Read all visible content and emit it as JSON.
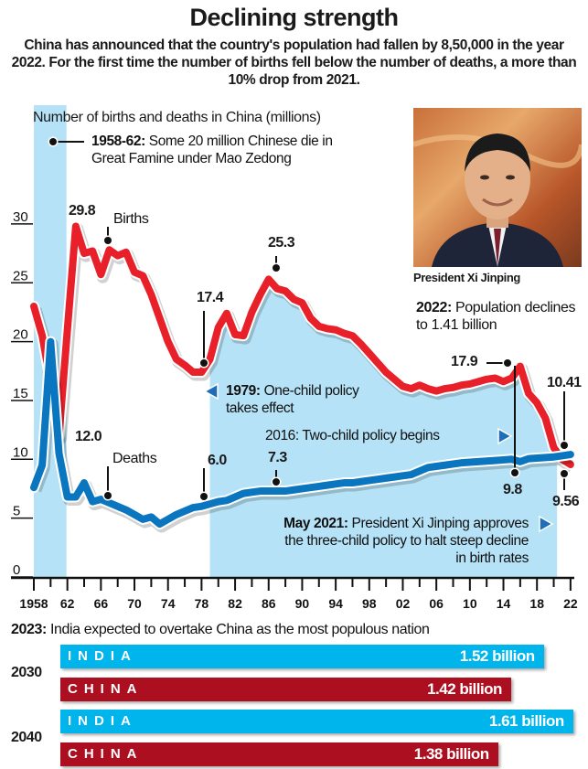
{
  "header": {
    "title": "Declining strength",
    "subtitle": "China has announced that the country's population had fallen by 8,50,000 in the year 2022. For the first time the number of births fell below the number of deaths, a more than 10% drop from 2021."
  },
  "photo": {
    "caption": "President Xi Jinping"
  },
  "colors": {
    "births": "#e8202a",
    "deaths": "#0a76c0",
    "shade": "#b5e2f6",
    "india": "#00b5ec",
    "china": "#ac1020"
  },
  "chart_data": [
    {
      "type": "line",
      "title": "Number of births and deaths in China (millions)",
      "xlabel": "",
      "ylabel": "millions",
      "xlim": [
        1958,
        2022
      ],
      "ylim": [
        0,
        30
      ],
      "yticks": [
        "0",
        "5",
        "10",
        "15",
        "20",
        "25",
        "30"
      ],
      "xticks": [
        "1958",
        "62",
        "66",
        "70",
        "74",
        "78",
        "82",
        "86",
        "90",
        "94",
        "98",
        "02",
        "06",
        "10",
        "14",
        "18",
        "22"
      ],
      "shaded_ranges": [
        [
          1958,
          1962
        ],
        [
          1979,
          2020.4
        ]
      ],
      "series": [
        {
          "name": "Births",
          "years": [
            1958,
            1959,
            1960,
            1961,
            1962,
            1963,
            1964,
            1965,
            1966,
            1967,
            1968,
            1969,
            1970,
            1971,
            1972,
            1973,
            1974,
            1975,
            1976,
            1977,
            1978,
            1979,
            1980,
            1981,
            1982,
            1983,
            1984,
            1985,
            1986,
            1987,
            1988,
            1989,
            1990,
            1991,
            1992,
            1993,
            1994,
            1995,
            1996,
            1997,
            1998,
            1999,
            2000,
            2001,
            2002,
            2003,
            2004,
            2005,
            2006,
            2007,
            2008,
            2009,
            2010,
            2011,
            2012,
            2013,
            2014,
            2015,
            2016,
            2017,
            2018,
            2019,
            2020,
            2021,
            2022
          ],
          "values": [
            23.0,
            20.5,
            16.5,
            12.0,
            21.0,
            29.8,
            27.5,
            27.7,
            25.7,
            27.8,
            27.3,
            27.6,
            25.9,
            25.6,
            24.0,
            22.0,
            20.0,
            18.5,
            18.0,
            17.4,
            17.4,
            18.5,
            21.2,
            22.4,
            20.6,
            20.5,
            22.5,
            24.0,
            25.3,
            24.5,
            24.3,
            23.6,
            23.3,
            22.0,
            21.3,
            21.1,
            21.0,
            20.7,
            20.5,
            19.8,
            19.0,
            18.2,
            17.4,
            16.8,
            16.2,
            16.0,
            16.3,
            16.0,
            15.8,
            16.0,
            16.1,
            16.3,
            16.4,
            16.6,
            16.8,
            16.9,
            16.6,
            16.9,
            17.9,
            15.6,
            14.8,
            13.5,
            11.0,
            10.0,
            9.56
          ]
        },
        {
          "name": "Deaths",
          "years": [
            1958,
            1959,
            1960,
            1961,
            1962,
            1963,
            1964,
            1965,
            1966,
            1967,
            1968,
            1969,
            1970,
            1971,
            1972,
            1973,
            1974,
            1975,
            1976,
            1977,
            1978,
            1979,
            1980,
            1981,
            1982,
            1983,
            1984,
            1985,
            1986,
            1987,
            1988,
            1989,
            1990,
            1991,
            1992,
            1993,
            1994,
            1995,
            1996,
            1997,
            1998,
            1999,
            2000,
            2001,
            2002,
            2003,
            2004,
            2005,
            2006,
            2007,
            2008,
            2009,
            2010,
            2011,
            2012,
            2013,
            2014,
            2015,
            2016,
            2017,
            2018,
            2019,
            2020,
            2021,
            2022
          ],
          "values": [
            7.6,
            9.5,
            20.0,
            10.5,
            6.8,
            6.8,
            8.0,
            6.4,
            6.6,
            6.3,
            6.0,
            5.7,
            5.3,
            4.9,
            5.1,
            4.5,
            4.9,
            5.3,
            5.6,
            5.9,
            6.0,
            6.2,
            6.4,
            6.5,
            6.8,
            7.1,
            7.2,
            7.3,
            7.3,
            7.3,
            7.3,
            7.4,
            7.5,
            7.6,
            7.7,
            7.8,
            7.9,
            8.0,
            8.0,
            8.1,
            8.2,
            8.3,
            8.4,
            8.5,
            8.6,
            8.7,
            9.0,
            9.3,
            9.4,
            9.5,
            9.6,
            9.7,
            9.75,
            9.8,
            9.85,
            9.9,
            9.95,
            10.0,
            9.8,
            10.05,
            10.1,
            10.15,
            10.2,
            10.3,
            10.41
          ]
        }
      ],
      "labels": {
        "births": "Births",
        "deaths": "Deaths",
        "v1": "29.8",
        "v2": "12.0",
        "v3": "17.4",
        "v4": "25.3",
        "v5": "6.0",
        "v6": "7.3",
        "v7": "17.9",
        "v8": "9.8",
        "v9": "10.41",
        "v10": "9.56"
      },
      "annotations": {
        "famine_bold": "1958-62:",
        "famine_text": " Some 20 million Chinese die in Great Famine under Mao Zedong",
        "onechild_bold": "1979:",
        "onechild_text": " One-child policy takes effect",
        "twochild": "2016: Two-child policy begins",
        "threechild_bold": "May 2021:",
        "threechild_text": " President Xi Jinping approves the three-child policy to halt steep decline in birth rates",
        "pop_bold": "2022:",
        "pop_text": " Population declines to 1.41 billion"
      }
    },
    {
      "type": "bar",
      "title_bold": "2023:",
      "title": " India expected to overtake China as the most populous nation",
      "groups": [
        {
          "year": "2030",
          "bars": [
            {
              "country": "INDIA",
              "value": 1.52,
              "label": "1.52 billion"
            },
            {
              "country": "CHINA",
              "value": 1.42,
              "label": "1.42 billion"
            }
          ]
        },
        {
          "year": "2040",
          "bars": [
            {
              "country": "INDIA",
              "value": 1.61,
              "label": "1.61 billion"
            },
            {
              "country": "CHINA",
              "value": 1.38,
              "label": "1.38 billion"
            }
          ]
        }
      ]
    }
  ]
}
